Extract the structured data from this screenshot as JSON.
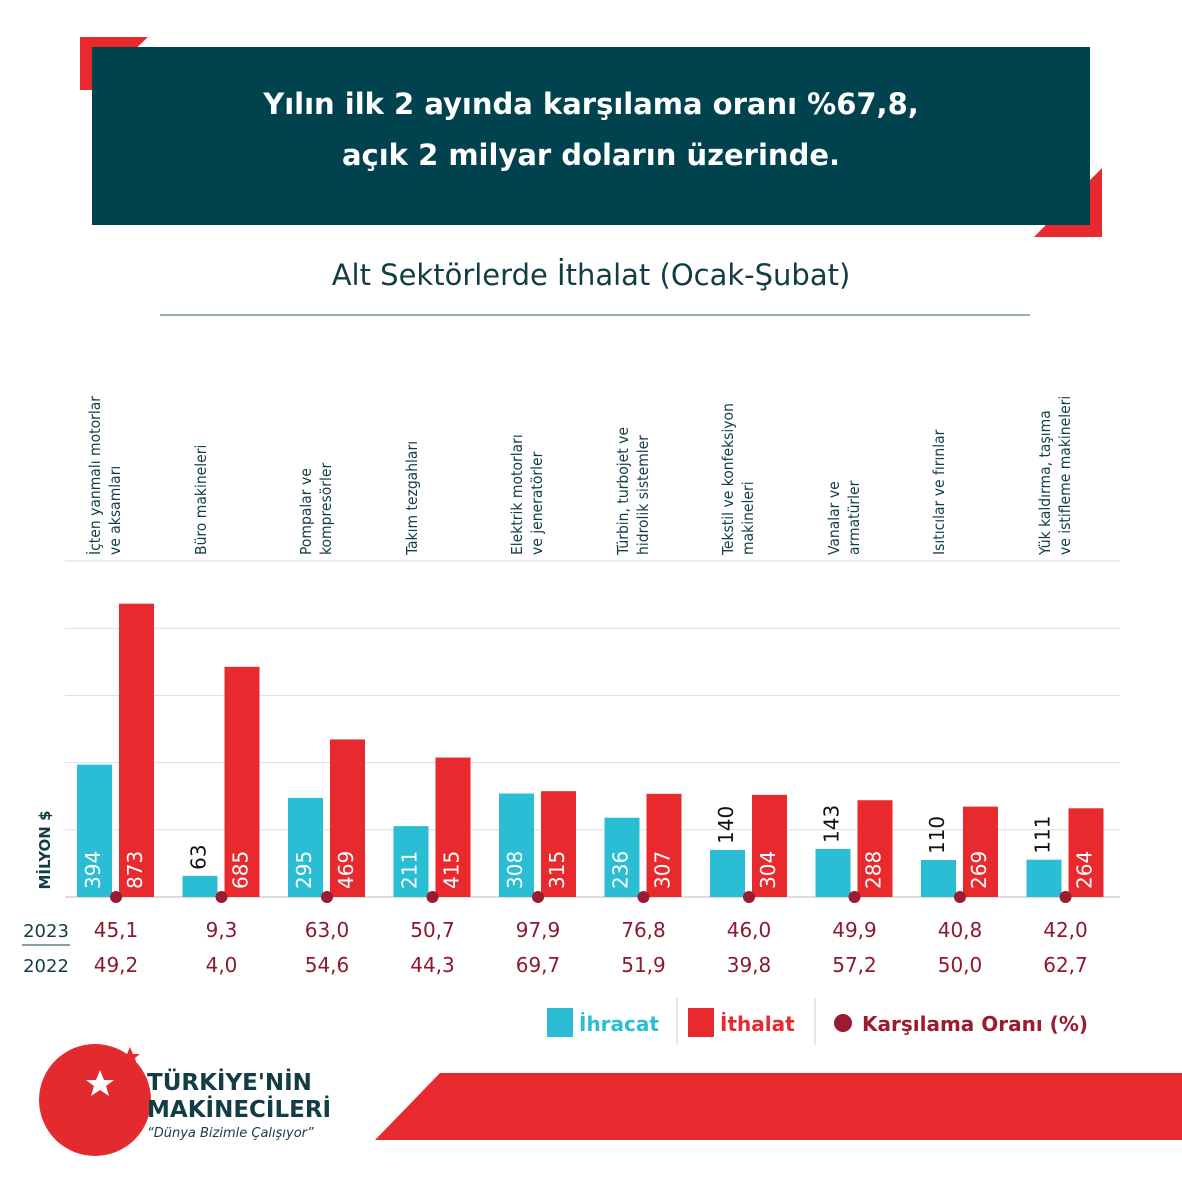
{
  "header": {
    "lines": [
      "Yılın ilk 2 ayında karşılama oranı %67,8,",
      "açık 2 milyar doların üzerinde."
    ]
  },
  "chart_data": {
    "type": "bar",
    "title": "Alt Sektörlerde İthalat (Ocak-Şubat)",
    "y_label": "MİLYON $",
    "categories": [
      "İçten yanmalı motorlar\nve aksamları",
      "Büro makineleri",
      "Pompalar ve\nkompresörler",
      "Takım tezgahları",
      "Elektrik motorları\nve jeneratörler",
      "Türbin, turbojet ve\nhidrolik sistemler",
      "Tekstil ve konfeksiyon\nmakineleri",
      "Vanalar ve\narmatürler",
      "Isıtıcılar ve fırınlar",
      "Yük kaldırma, taşıma\nve istifleme makineleri"
    ],
    "series": [
      {
        "name": "İhracat",
        "color": "#2bbdd3",
        "values": [
          394,
          63,
          295,
          211,
          308,
          236,
          140,
          143,
          110,
          111
        ]
      },
      {
        "name": "İthalat",
        "color": "#e8292e",
        "values": [
          873,
          685,
          469,
          415,
          315,
          307,
          304,
          288,
          269,
          264
        ]
      }
    ],
    "ratio": {
      "name": "Karşılama Oranı (%)",
      "color": "#9b1b30",
      "rows": [
        {
          "year": "2023",
          "values": [
            45.1,
            9.3,
            63.0,
            50.7,
            97.9,
            76.8,
            46.0,
            49.9,
            40.8,
            42.0
          ],
          "value_labels": [
            "45,1",
            "9,3",
            "63,0",
            "50,7",
            "97,9",
            "76,8",
            "46,0",
            "49,9",
            "40,8",
            "42,0"
          ]
        },
        {
          "year": "2022",
          "values": [
            49.2,
            4.0,
            54.6,
            44.3,
            69.7,
            51.9,
            39.8,
            57.2,
            50.0,
            62.7
          ],
          "value_labels": [
            "49,2",
            "4,0",
            "54,6",
            "44,3",
            "69,7",
            "51,9",
            "39,8",
            "57,2",
            "50,0",
            "62,7"
          ]
        }
      ]
    },
    "ylim": [
      0,
      1000
    ],
    "yticks": [
      0,
      200,
      400,
      600,
      800,
      1000
    ],
    "grid": true
  },
  "logo": {
    "line1": "TÜRKİYE'NİN",
    "line2": "MAKİNECİLERİ",
    "slogan": "“Dünya Bizimle Çalışıyor”"
  }
}
